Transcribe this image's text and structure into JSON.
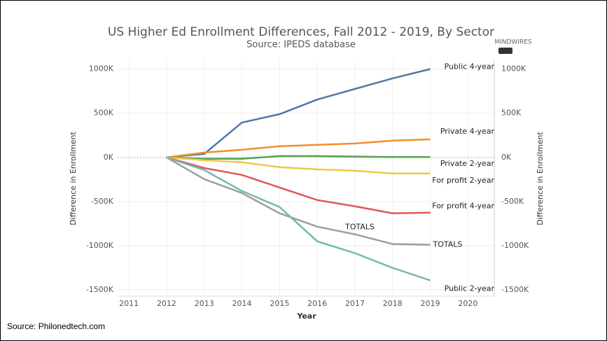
{
  "chart_data": {
    "type": "line",
    "title": "US Higher Ed Enrollment Differences, Fall 2012 - 2019, By Sector",
    "subtitle": "Source: IPEDS database",
    "x_label": "Year",
    "y_label": "Difference in Enrollment",
    "y2_label": "Difference in Enrollment",
    "logo": "MINDWIRES",
    "footer": "Source: Philonedtech.com",
    "x": [
      2012,
      2013,
      2014,
      2015,
      2016,
      2017,
      2018,
      2019
    ],
    "xlim": [
      2010.7,
      2020.7
    ],
    "xticks": [
      2011,
      2012,
      2013,
      2014,
      2015,
      2016,
      2017,
      2018,
      2019,
      2020
    ],
    "ylim": [
      -1570000,
      1100000
    ],
    "yticks": [
      {
        "value": -1500000,
        "label": "-1500K"
      },
      {
        "value": -1000000,
        "label": "-1000K"
      },
      {
        "value": -500000,
        "label": "-500K"
      },
      {
        "value": 0,
        "label": "0K"
      },
      {
        "value": 500000,
        "label": "500K"
      },
      {
        "value": 1000000,
        "label": "1000K"
      }
    ],
    "grid": true,
    "series": [
      {
        "name": "Public 4-year",
        "color": "#4e79a7",
        "values": [
          0,
          40000,
          395000,
          490000,
          655000,
          775000,
          895000,
          1000000
        ]
      },
      {
        "name": "Private 4-year",
        "color": "#f28e2b",
        "values": [
          0,
          55000,
          87000,
          126000,
          142000,
          158000,
          190000,
          205000
        ]
      },
      {
        "name": "Private 2-year",
        "color": "#59a14f",
        "values": [
          0,
          -15000,
          -15000,
          15000,
          15000,
          10000,
          5000,
          5000
        ]
      },
      {
        "name": "For profit 2-year",
        "color": "#edc948",
        "values": [
          0,
          -32000,
          -55000,
          -110000,
          -135000,
          -150000,
          -182000,
          -182000
        ]
      },
      {
        "name": "For profit 4-year",
        "color": "#e15759",
        "values": [
          0,
          -120000,
          -198000,
          -340000,
          -482000,
          -553000,
          -632000,
          -625000
        ]
      },
      {
        "name": "TOTALS",
        "color": "#9e9e9e",
        "values": [
          0,
          -245000,
          -403000,
          -632000,
          -783000,
          -870000,
          -980000,
          -988000
        ]
      },
      {
        "name": "Public 2-year",
        "color": "#76b7b2",
        "values": [
          0,
          -142000,
          -380000,
          -561000,
          -949000,
          -1083000,
          -1249000,
          -1391000
        ]
      }
    ]
  }
}
